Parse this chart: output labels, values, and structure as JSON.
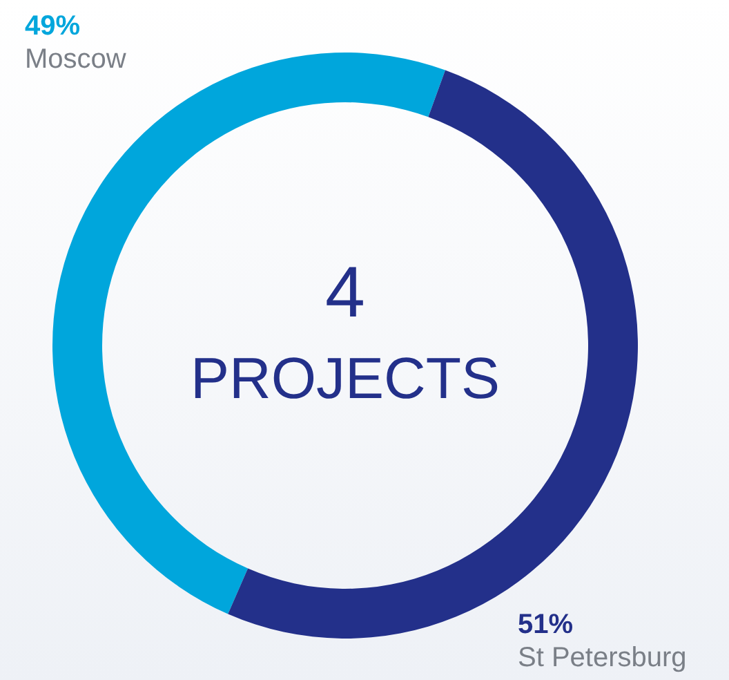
{
  "chart_data": {
    "type": "donut",
    "categories": [
      "Moscow",
      "St Petersburg"
    ],
    "values": [
      49,
      51
    ],
    "colors": [
      "#00a6dc",
      "#23308a"
    ],
    "value_labels": [
      "49%",
      "51%"
    ],
    "annotations": [
      "4",
      "PROJECTS"
    ]
  }
}
